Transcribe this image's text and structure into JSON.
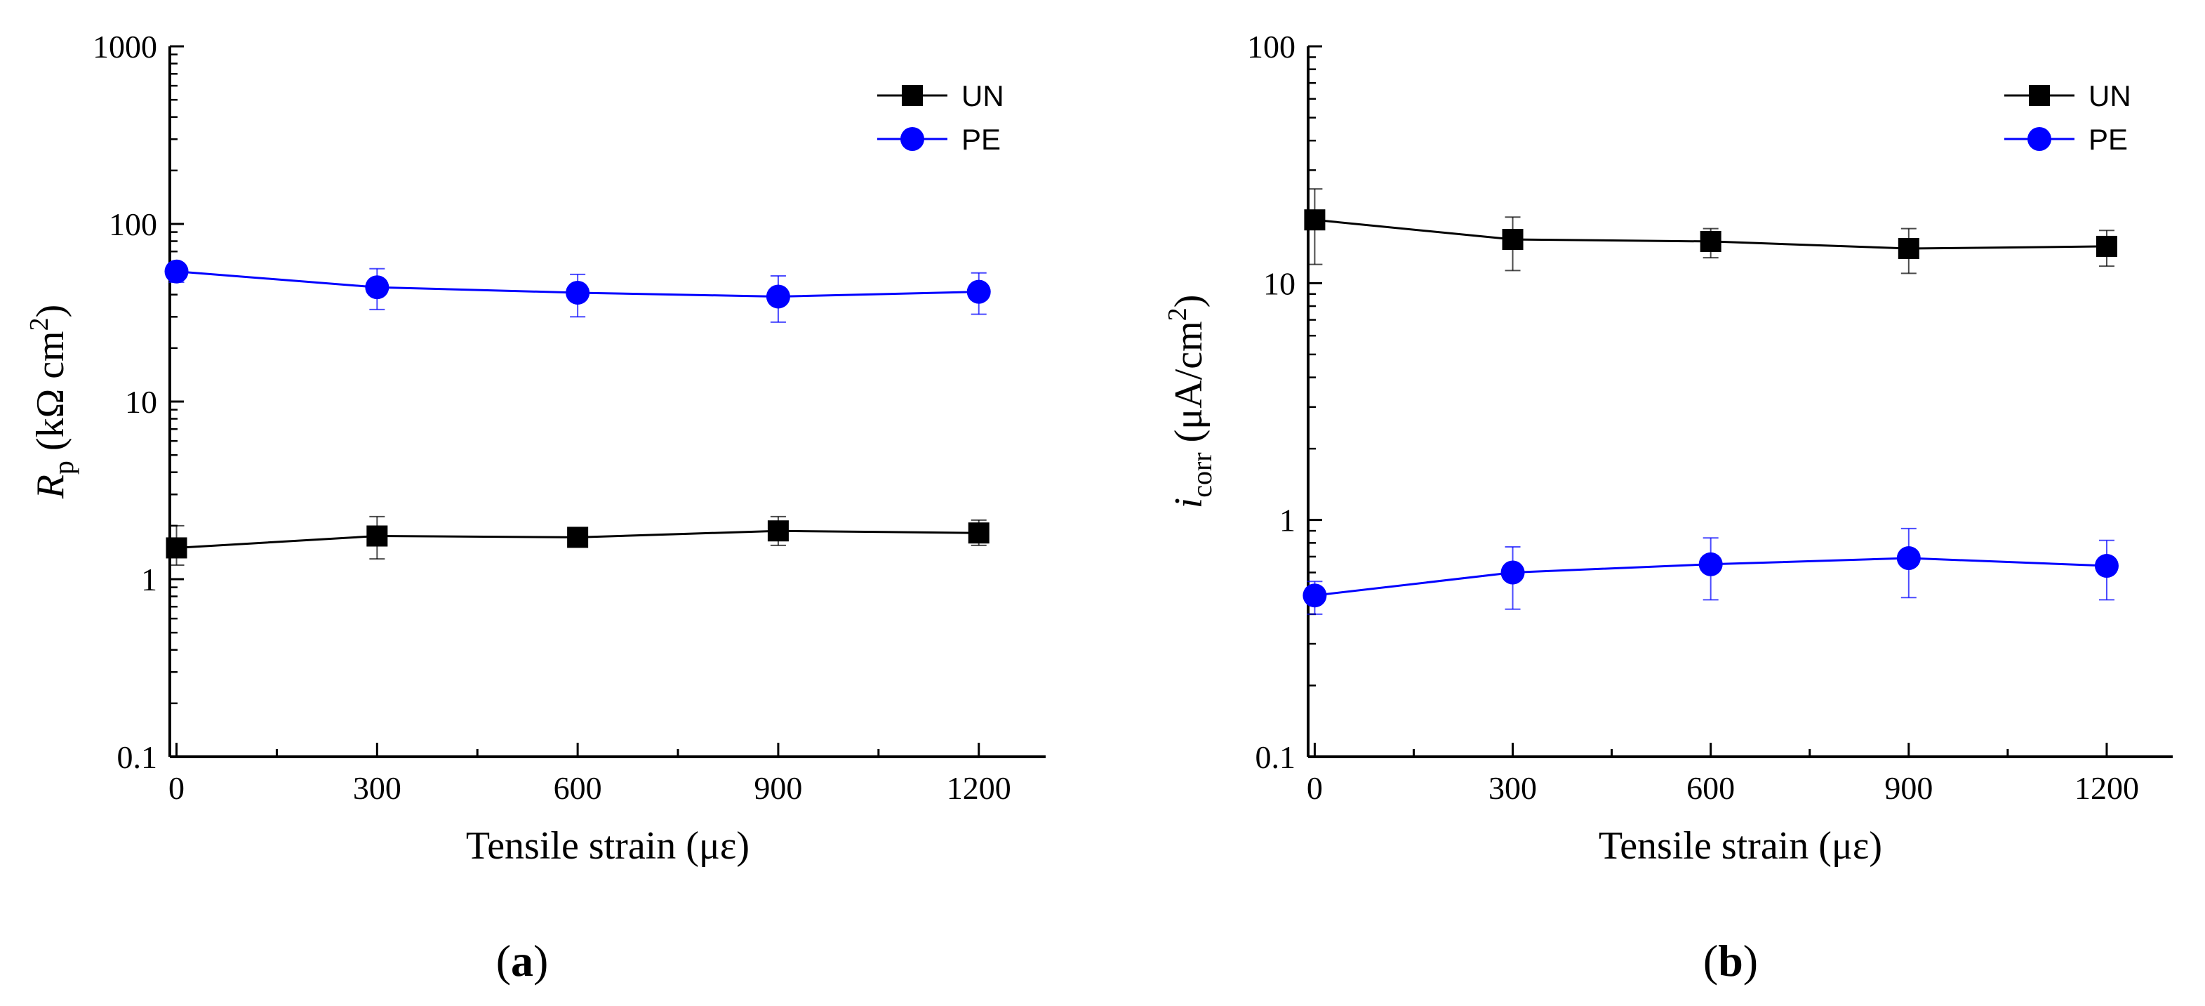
{
  "chart_data": [
    {
      "id": "a",
      "type": "line",
      "panel_label": "a",
      "xlabel": "Tensile strain (με)",
      "ylabel": {
        "main": "R",
        "sub": "p",
        "unit_pre": " (kΩ cm",
        "sup": "2",
        "unit_post": ")"
      },
      "x": [
        0,
        300,
        600,
        900,
        1200
      ],
      "xlim": [
        -10,
        1300
      ],
      "xticks": [
        0,
        300,
        600,
        900,
        1200
      ],
      "xtick_labels": [
        "0",
        "300",
        "600",
        "900",
        "1200"
      ],
      "yscale": "log",
      "ylim": [
        0.1,
        1000
      ],
      "yticks": [
        0.1,
        1,
        10,
        100,
        1000
      ],
      "ytick_labels": [
        "0.1",
        "1",
        "10",
        "100",
        "1000"
      ],
      "legend_position": "top-right",
      "series": [
        {
          "name": "UN",
          "marker": "square",
          "color": "#000000",
          "values": [
            1.5,
            1.75,
            1.72,
            1.87,
            1.82
          ],
          "err_low": [
            1.2,
            1.3,
            1.52,
            1.55,
            1.55
          ],
          "err_high": [
            2.0,
            2.25,
            1.95,
            2.25,
            2.15
          ]
        },
        {
          "name": "PE",
          "marker": "circle",
          "color": "#0000ff",
          "values": [
            54,
            44,
            41,
            39,
            41.5
          ],
          "err_low": [
            47,
            33,
            30,
            28,
            31
          ],
          "err_high": [
            60,
            56,
            52,
            51,
            53
          ]
        }
      ]
    },
    {
      "id": "b",
      "type": "line",
      "panel_label": "b",
      "xlabel": "Tensile strain (με)",
      "ylabel": {
        "main": "i",
        "sub": "corr",
        "unit_pre": " (μA/cm",
        "sup": "2",
        "unit_post": ")"
      },
      "x": [
        0,
        300,
        600,
        900,
        1200
      ],
      "xlim": [
        -10,
        1300
      ],
      "xticks": [
        0,
        300,
        600,
        900,
        1200
      ],
      "xtick_labels": [
        "0",
        "300",
        "600",
        "900",
        "1200"
      ],
      "yscale": "log",
      "ylim": [
        0.1,
        100
      ],
      "yticks": [
        0.1,
        1,
        10,
        100
      ],
      "ytick_labels": [
        "0.1",
        "1",
        "10",
        "100"
      ],
      "legend_position": "top-right",
      "series": [
        {
          "name": "UN",
          "marker": "square",
          "color": "#000000",
          "values": [
            18.5,
            15.3,
            15.0,
            14.0,
            14.3
          ],
          "err_low": [
            12,
            11.3,
            12.8,
            11.0,
            11.8
          ],
          "err_high": [
            25,
            19,
            17,
            17,
            16.7
          ]
        },
        {
          "name": "PE",
          "marker": "circle",
          "color": "#0000ff",
          "values": [
            0.48,
            0.6,
            0.65,
            0.69,
            0.64
          ],
          "err_low": [
            0.4,
            0.42,
            0.46,
            0.47,
            0.46
          ],
          "err_high": [
            0.55,
            0.77,
            0.84,
            0.92,
            0.82
          ]
        }
      ]
    }
  ]
}
